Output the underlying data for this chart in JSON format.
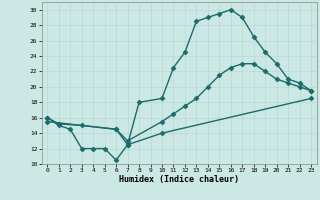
{
  "title": "",
  "xlabel": "Humidex (Indice chaleur)",
  "ylabel": "",
  "bg_color": "#cce8e4",
  "line_color": "#1a6b6b",
  "grid_color": "#b8d8d4",
  "xlim": [
    -0.5,
    23.5
  ],
  "ylim": [
    10,
    31
  ],
  "yticks": [
    10,
    12,
    14,
    16,
    18,
    20,
    22,
    24,
    26,
    28,
    30
  ],
  "xticks": [
    0,
    1,
    2,
    3,
    4,
    5,
    6,
    7,
    8,
    9,
    10,
    11,
    12,
    13,
    14,
    15,
    16,
    17,
    18,
    19,
    20,
    21,
    22,
    23
  ],
  "line1_x": [
    0,
    1,
    2,
    3,
    4,
    5,
    6,
    7,
    8,
    10,
    11,
    12,
    13,
    14,
    15,
    16,
    17,
    18,
    19,
    20,
    21,
    22,
    23
  ],
  "line1_y": [
    16,
    15,
    14.5,
    12,
    12,
    12,
    10.5,
    12.5,
    18,
    18.5,
    22.5,
    24.5,
    28.5,
    29,
    29.5,
    30,
    29,
    26.5,
    24.5,
    23,
    21,
    20.5,
    19.5
  ],
  "line2_x": [
    0,
    1,
    3,
    6,
    7,
    10,
    11,
    12,
    13,
    14,
    15,
    16,
    17,
    18,
    19,
    20,
    21,
    22,
    23
  ],
  "line2_y": [
    16,
    15.2,
    15.0,
    14.5,
    13.0,
    15.5,
    16.5,
    17.5,
    18.5,
    20,
    21.5,
    22.5,
    23,
    23,
    22,
    21,
    20.5,
    20,
    19.5
  ],
  "line3_x": [
    0,
    6,
    7,
    10,
    23
  ],
  "line3_y": [
    15.5,
    14.5,
    12.5,
    14.0,
    18.5
  ],
  "marker": "D",
  "markersize": 2.5,
  "linewidth": 1.0
}
